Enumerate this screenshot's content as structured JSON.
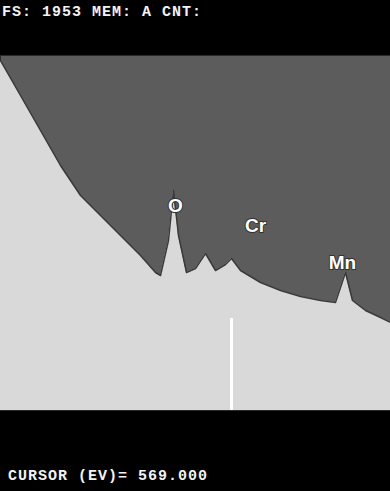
{
  "chart_data": {
    "type": "area",
    "title": "FS: 1953 MEM: A CNT:",
    "x": [
      453.5,
      463.5,
      473.5,
      483.5,
      493.5,
      503.5,
      513.5,
      523.5,
      531,
      533.5,
      537.5,
      540,
      542.5,
      546.5,
      551,
      556,
      561,
      566,
      569,
      573.5,
      583.5,
      593.5,
      603.5,
      613.5,
      621,
      626,
      629.5,
      636,
      643.5,
      648.5
    ],
    "values": [
      350,
      315,
      280,
      245,
      215,
      195,
      175,
      155,
      138,
      135,
      170,
      220,
      175,
      138,
      142,
      157,
      140,
      146,
      152,
      140,
      128,
      120,
      114,
      110,
      108,
      138,
      110,
      100,
      93,
      88
    ],
    "xlim": [
      453.5,
      648.5
    ],
    "ylim": [
      0,
      355
    ],
    "tick_labels": false,
    "grid": false,
    "color": "#d9d9d9",
    "annotations": [
      {
        "text": "O",
        "x": 541,
        "y": 205
      },
      {
        "text": "Cr",
        "x": 581,
        "y": 185
      },
      {
        "text": "Mn",
        "x": 624.5,
        "y": 148
      }
    ],
    "cursor": {
      "x": 569,
      "label": "CURSOR (EV)= 569.000"
    }
  }
}
